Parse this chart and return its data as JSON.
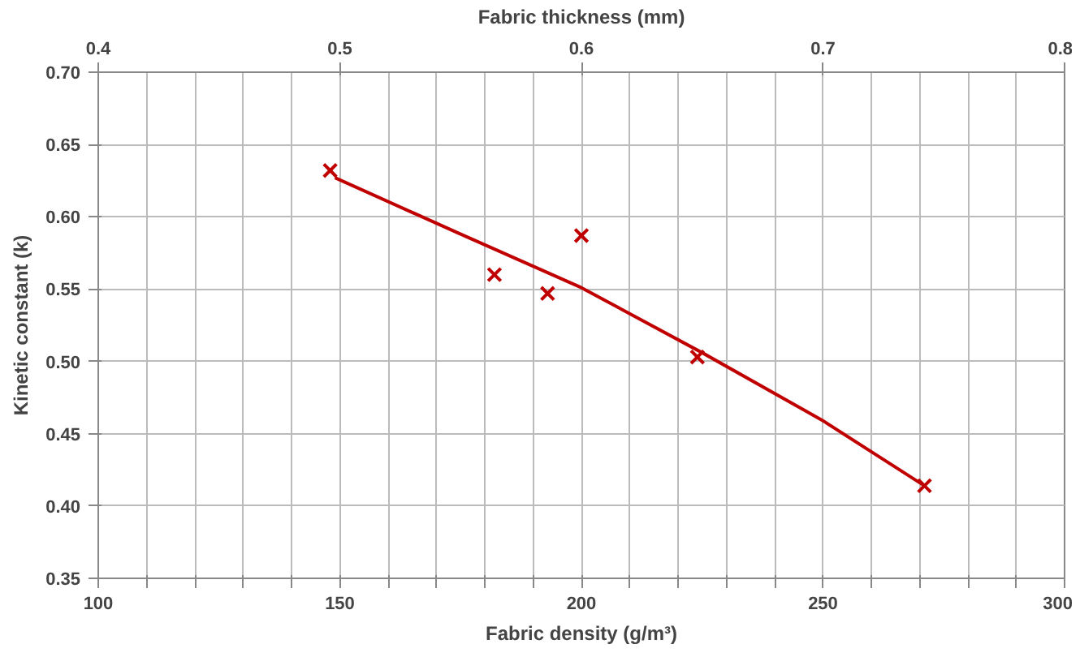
{
  "chart_data": {
    "type": "scatter",
    "xlabel": "Fabric density (g/m³)",
    "ylabel": "Kinetic constant (k)",
    "x2label": "Fabric thickness (mm)",
    "xlim": [
      100,
      300
    ],
    "ylim": [
      0.35,
      0.7
    ],
    "xticks": [
      100,
      {
        "value": 110,
        "label": null
      },
      {
        "value": 120,
        "label": null
      },
      {
        "value": 130,
        "label": null
      },
      {
        "value": 140,
        "label": null
      },
      150,
      {
        "value": 160,
        "label": null
      },
      {
        "value": 170,
        "label": null
      },
      {
        "value": 180,
        "label": null
      },
      {
        "value": 190,
        "label": null
      },
      200,
      {
        "value": 210,
        "label": null
      },
      {
        "value": 220,
        "label": null
      },
      {
        "value": 230,
        "label": null
      },
      {
        "value": 240,
        "label": null
      },
      250,
      {
        "value": 260,
        "label": null
      },
      {
        "value": 270,
        "label": null
      },
      {
        "value": 280,
        "label": null
      },
      {
        "value": 290,
        "label": null
      },
      300
    ],
    "yticks": [
      {
        "value": 0.35,
        "label": "0.35"
      },
      {
        "value": 0.4,
        "label": "0.40"
      },
      {
        "value": 0.45,
        "label": "0.45"
      },
      {
        "value": 0.5,
        "label": "0.50"
      },
      {
        "value": 0.55,
        "label": "0.55"
      },
      {
        "value": 0.6,
        "label": "0.60"
      },
      {
        "value": 0.65,
        "label": "0.65"
      },
      {
        "value": 0.7,
        "label": "0.70"
      }
    ],
    "x2lim": [
      0.4,
      0.8
    ],
    "x2ticks": [
      0.4,
      0.5,
      0.6,
      0.7,
      0.8
    ],
    "grid": true,
    "series": [
      {
        "marker": "cross",
        "color": "#c00000",
        "x": [
          148,
          182,
          193,
          200,
          224,
          271
        ],
        "values": [
          0.632,
          0.56,
          0.547,
          0.587,
          0.503,
          0.414
        ]
      },
      {
        "type": "line",
        "line_style": "solid",
        "color": "#c00000",
        "x": [
          149,
          175,
          200,
          225,
          250,
          271
        ],
        "values": [
          0.627,
          0.588,
          0.551,
          0.506,
          0.459,
          0.414
        ]
      }
    ]
  }
}
